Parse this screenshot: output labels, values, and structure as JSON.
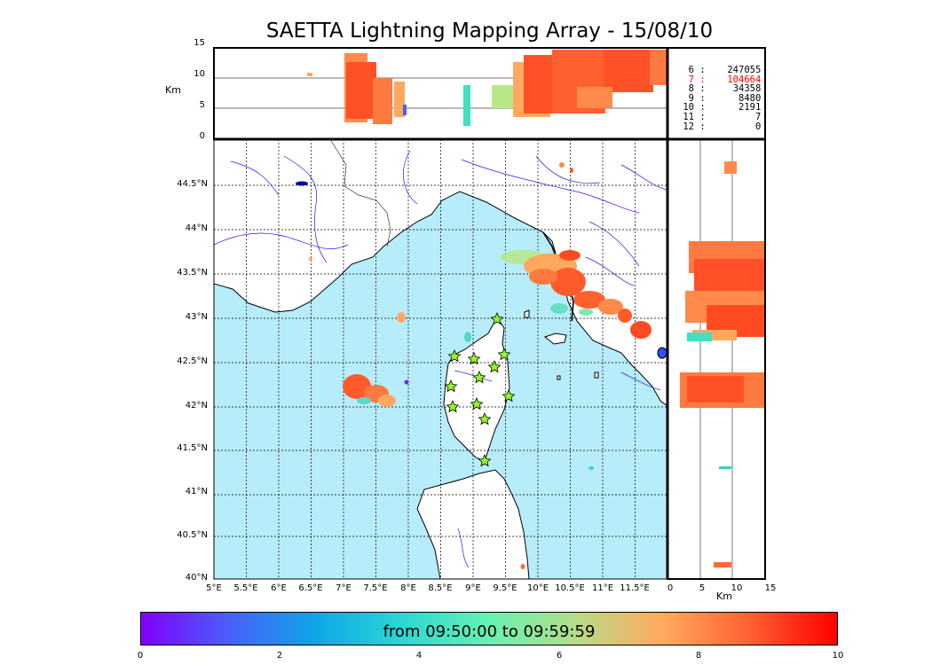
{
  "title": "SAETTA Lightning Mapping Array - 15/08/10",
  "top_panel": {
    "ylabel": "Km",
    "yticks": [
      "15",
      "10",
      "5",
      "0"
    ]
  },
  "right_panel": {
    "xlabel": "Km",
    "xticks": [
      "0",
      "5",
      "10",
      "15"
    ]
  },
  "map": {
    "lat_labels": [
      "44.5°N",
      "44°N",
      "43.5°N",
      "43°N",
      "42.5°N",
      "42°N",
      "41.5°N",
      "41°N",
      "40.5°N",
      "40°N"
    ],
    "lon_labels": [
      "5°E",
      "5.5°E",
      "6°E",
      "6.5°E",
      "7°E",
      "7.5°E",
      "8°E",
      "8.5°E",
      "9°E",
      "9.5°E",
      "10°E",
      "10.5°E",
      "11°E",
      "11.5°E"
    ],
    "sea_color": "#b7ecfb",
    "station_count": 12
  },
  "altitude_counts": [
    {
      "alt": "6",
      "count": "247055",
      "color": "#000000"
    },
    {
      "alt": "7",
      "count": "104664",
      "color": "#ff0000"
    },
    {
      "alt": "8",
      "count": "34358",
      "color": "#000000"
    },
    {
      "alt": "9",
      "count": "8480",
      "color": "#000000"
    },
    {
      "alt": "10",
      "count": "2191",
      "color": "#000000"
    },
    {
      "alt": "11",
      "count": "7",
      "color": "#000000"
    },
    {
      "alt": "12",
      "count": "0",
      "color": "#000000"
    }
  ],
  "colorbar": {
    "label": "from 09:50:00 to 09:59:59",
    "ticks": [
      "0",
      "2",
      "4",
      "6",
      "8",
      "10"
    ],
    "range": [
      0,
      10
    ]
  }
}
